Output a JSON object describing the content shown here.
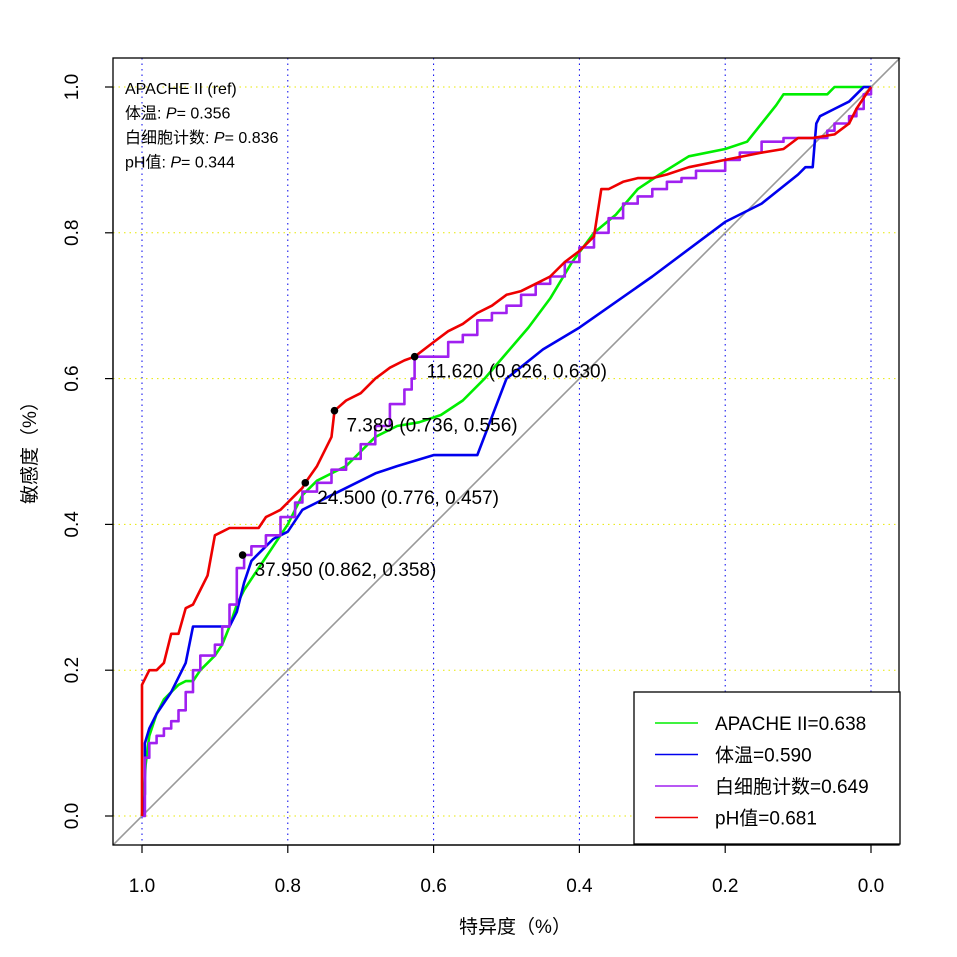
{
  "chart_data": {
    "type": "line",
    "xlabel": "特异度（%）",
    "ylabel": "敏感度（%）",
    "xlim": [
      1.0,
      0.0
    ],
    "ylim": [
      0.0,
      1.0
    ],
    "x_ticks": [
      "1.0",
      "0.8",
      "0.6",
      "0.4",
      "0.2",
      "0.0"
    ],
    "y_ticks": [
      "0.0",
      "0.2",
      "0.4",
      "0.6",
      "0.8",
      "1.0"
    ],
    "grid": {
      "vertical": "blue dotted",
      "horizontal": "yellow dotted"
    },
    "diagonal_color": "#999999",
    "pvalue_text": [
      {
        "label": "APACHE II  (ref)",
        "p": ""
      },
      {
        "label": "体温: ",
        "p": "P",
        "value": "= 0.356"
      },
      {
        "label": "白细胞计数: ",
        "p": "P",
        "value": "= 0.836"
      },
      {
        "label": "pH值: ",
        "p": "P",
        "value": "= 0.344"
      }
    ],
    "series": [
      {
        "name": "APACHE II=0.638",
        "color": "#00ee00",
        "x": [
          1.0,
          0.995,
          0.99,
          0.98,
          0.97,
          0.96,
          0.95,
          0.94,
          0.93,
          0.92,
          0.91,
          0.9,
          0.89,
          0.88,
          0.87,
          0.86,
          0.84,
          0.82,
          0.8,
          0.78,
          0.76,
          0.74,
          0.72,
          0.7,
          0.68,
          0.65,
          0.62,
          0.59,
          0.56,
          0.53,
          0.5,
          0.47,
          0.44,
          0.41,
          0.38,
          0.35,
          0.32,
          0.29,
          0.25,
          0.2,
          0.17,
          0.13,
          0.12,
          0.09,
          0.06,
          0.05,
          0.02,
          0.0
        ],
        "y": [
          0.0,
          0.07,
          0.11,
          0.14,
          0.16,
          0.17,
          0.18,
          0.185,
          0.185,
          0.2,
          0.21,
          0.22,
          0.235,
          0.26,
          0.29,
          0.31,
          0.34,
          0.37,
          0.4,
          0.44,
          0.46,
          0.47,
          0.48,
          0.5,
          0.52,
          0.535,
          0.54,
          0.55,
          0.57,
          0.6,
          0.635,
          0.67,
          0.71,
          0.76,
          0.8,
          0.825,
          0.86,
          0.88,
          0.905,
          0.915,
          0.925,
          0.975,
          0.99,
          0.99,
          0.99,
          1.0,
          1.0,
          1.0
        ],
        "step": false
      },
      {
        "name": "体温=0.590",
        "color": "#0000ee",
        "x": [
          1.0,
          0.996,
          0.996,
          0.99,
          0.98,
          0.96,
          0.94,
          0.93,
          0.92,
          0.9,
          0.88,
          0.87,
          0.86,
          0.85,
          0.84,
          0.83,
          0.82,
          0.8,
          0.78,
          0.76,
          0.74,
          0.72,
          0.7,
          0.68,
          0.65,
          0.6,
          0.55,
          0.54,
          0.5,
          0.45,
          0.4,
          0.3,
          0.2,
          0.15,
          0.1,
          0.09,
          0.08,
          0.075,
          0.07,
          0.05,
          0.03,
          0.02,
          0.01,
          0.005,
          0.0
        ],
        "y": [
          0.0,
          0.03,
          0.1,
          0.12,
          0.14,
          0.17,
          0.21,
          0.26,
          0.26,
          0.26,
          0.26,
          0.28,
          0.32,
          0.35,
          0.36,
          0.37,
          0.38,
          0.39,
          0.42,
          0.43,
          0.44,
          0.45,
          0.46,
          0.47,
          0.48,
          0.495,
          0.495,
          0.495,
          0.6,
          0.64,
          0.67,
          0.74,
          0.815,
          0.84,
          0.88,
          0.89,
          0.89,
          0.95,
          0.96,
          0.97,
          0.98,
          0.99,
          1.0,
          1.0,
          1.0
        ],
        "step": false
      },
      {
        "name": "白细胞计数=0.649",
        "color": "#a020f0",
        "x": [
          1.0,
          0.996,
          0.99,
          0.98,
          0.97,
          0.96,
          0.95,
          0.94,
          0.93,
          0.92,
          0.9,
          0.89,
          0.88,
          0.87,
          0.86,
          0.85,
          0.83,
          0.81,
          0.79,
          0.78,
          0.76,
          0.74,
          0.72,
          0.7,
          0.68,
          0.66,
          0.64,
          0.63,
          0.626,
          0.6,
          0.58,
          0.56,
          0.54,
          0.52,
          0.5,
          0.48,
          0.46,
          0.44,
          0.42,
          0.4,
          0.38,
          0.36,
          0.34,
          0.32,
          0.3,
          0.28,
          0.26,
          0.24,
          0.2,
          0.18,
          0.15,
          0.12,
          0.1,
          0.08,
          0.06,
          0.05,
          0.03,
          0.02,
          0.01,
          0.0
        ],
        "y": [
          0.0,
          0.08,
          0.1,
          0.11,
          0.12,
          0.13,
          0.145,
          0.17,
          0.2,
          0.22,
          0.235,
          0.26,
          0.29,
          0.34,
          0.358,
          0.37,
          0.385,
          0.41,
          0.43,
          0.445,
          0.457,
          0.475,
          0.49,
          0.51,
          0.535,
          0.565,
          0.585,
          0.6,
          0.63,
          0.63,
          0.65,
          0.66,
          0.68,
          0.69,
          0.7,
          0.715,
          0.73,
          0.74,
          0.76,
          0.78,
          0.8,
          0.82,
          0.84,
          0.85,
          0.86,
          0.87,
          0.875,
          0.885,
          0.9,
          0.91,
          0.925,
          0.93,
          0.93,
          0.93,
          0.94,
          0.95,
          0.96,
          0.97,
          0.99,
          1.0
        ],
        "step": true
      },
      {
        "name": "pH值=0.681",
        "color": "#ee0000",
        "x": [
          1.0,
          1.0,
          0.99,
          0.98,
          0.97,
          0.96,
          0.95,
          0.94,
          0.93,
          0.92,
          0.91,
          0.9,
          0.89,
          0.88,
          0.87,
          0.86,
          0.85,
          0.84,
          0.83,
          0.82,
          0.81,
          0.8,
          0.79,
          0.78,
          0.776,
          0.76,
          0.74,
          0.736,
          0.72,
          0.7,
          0.68,
          0.66,
          0.64,
          0.626,
          0.6,
          0.58,
          0.56,
          0.54,
          0.52,
          0.5,
          0.48,
          0.46,
          0.44,
          0.42,
          0.4,
          0.38,
          0.37,
          0.36,
          0.34,
          0.32,
          0.3,
          0.28,
          0.25,
          0.2,
          0.15,
          0.12,
          0.1,
          0.08,
          0.05,
          0.03,
          0.02,
          0.01,
          0.0
        ],
        "y": [
          0.0,
          0.18,
          0.2,
          0.2,
          0.21,
          0.25,
          0.25,
          0.285,
          0.29,
          0.31,
          0.33,
          0.385,
          0.39,
          0.395,
          0.395,
          0.395,
          0.395,
          0.395,
          0.41,
          0.415,
          0.42,
          0.43,
          0.44,
          0.45,
          0.457,
          0.48,
          0.52,
          0.556,
          0.57,
          0.58,
          0.6,
          0.615,
          0.625,
          0.63,
          0.65,
          0.665,
          0.675,
          0.69,
          0.7,
          0.715,
          0.72,
          0.73,
          0.74,
          0.76,
          0.775,
          0.795,
          0.86,
          0.86,
          0.87,
          0.875,
          0.875,
          0.88,
          0.89,
          0.9,
          0.91,
          0.915,
          0.93,
          0.93,
          0.935,
          0.95,
          0.97,
          0.985,
          1.0
        ],
        "step": false
      }
    ],
    "annotations": [
      {
        "text": "11.620 (0.626, 0.630)",
        "x": 0.626,
        "y": 0.63
      },
      {
        "text": "7.389 (0.736, 0.556)",
        "x": 0.736,
        "y": 0.556
      },
      {
        "text": "24.500 (0.776, 0.457)",
        "x": 0.776,
        "y": 0.457
      },
      {
        "text": "37.950 (0.862, 0.358)",
        "x": 0.862,
        "y": 0.358
      }
    ],
    "legend_position": "bottom-right"
  }
}
